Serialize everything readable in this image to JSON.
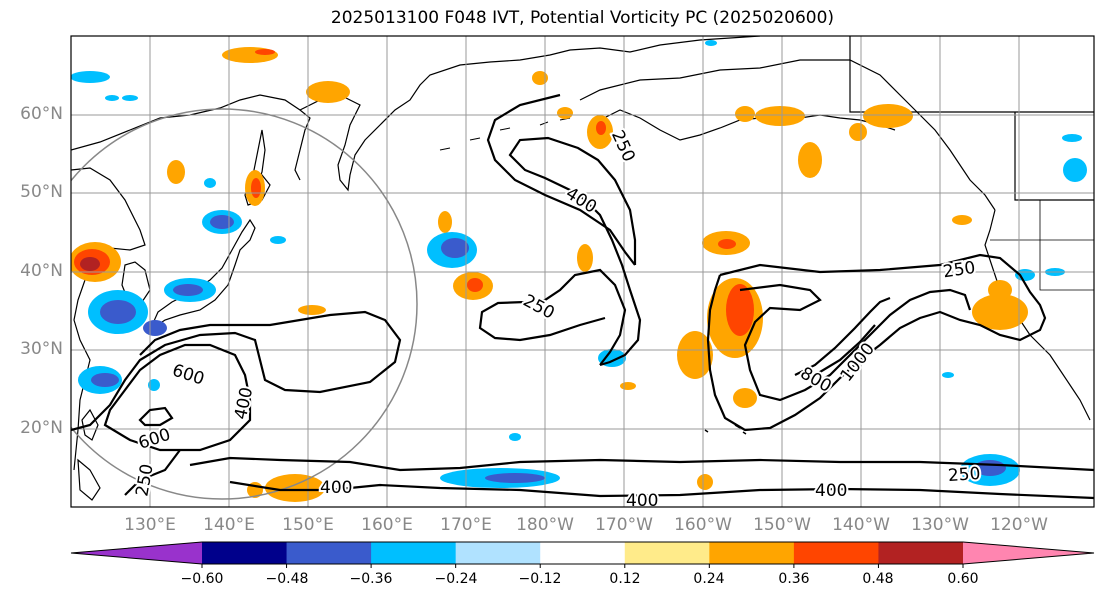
{
  "title": "2025013100 F048 IVT, Potential Vorticity PC (2025020600)",
  "lat_labels": [
    "60°N",
    "50°N",
    "40°N",
    "30°N",
    "20°N"
  ],
  "lon_labels": [
    "130°E",
    "140°E",
    "150°E",
    "160°E",
    "170°E",
    "180°W",
    "170°W",
    "160°W",
    "150°W",
    "140°W",
    "130°W",
    "120°W"
  ],
  "ivt_contour_labels": [
    "250",
    "400",
    "250",
    "600",
    "400",
    "600",
    "250",
    "400",
    "400",
    "250",
    "800",
    "1000",
    "250",
    "400"
  ],
  "colorbar": {
    "ticks": [
      "−0.60",
      "−0.48",
      "−0.36",
      "−0.24",
      "−0.12",
      "0.12",
      "0.24",
      "0.36",
      "0.48",
      "0.60"
    ],
    "colors": [
      "#9932CC",
      "#00008B",
      "#3A5BCC",
      "#00BFFF",
      "#B0E2FF",
      "#FFFFFF",
      "#FFEB8A",
      "#FFA500",
      "#FF4500",
      "#B22222",
      "#FF85B0"
    ]
  },
  "map_colors": {
    "coast": "#000000",
    "grid": "#999999",
    "contour": "#000000",
    "circle": "#888888"
  }
}
